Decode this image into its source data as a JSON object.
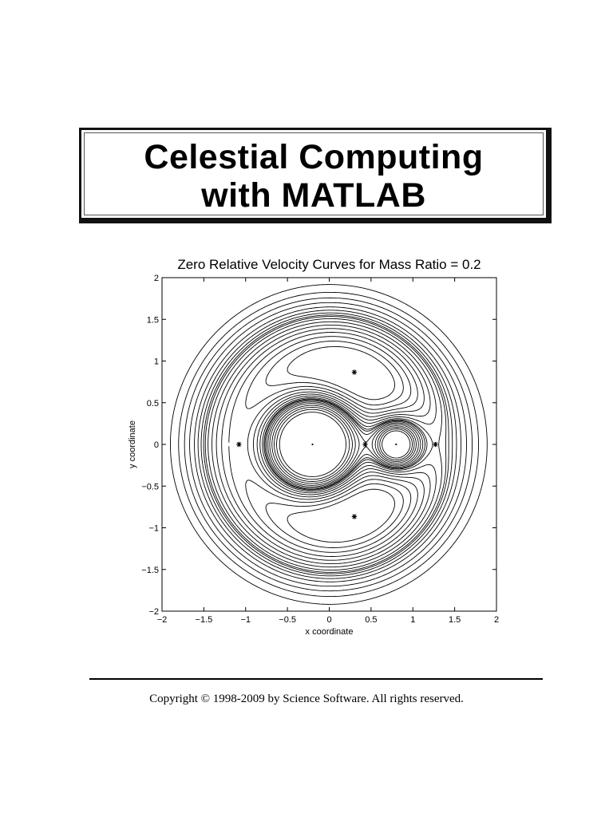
{
  "document": {
    "title_line1": "Celestial Computing",
    "title_line2": "with MATLAB",
    "copyright": "Copyright © 1998-2009 by Science Software. All rights reserved."
  },
  "chart_data": {
    "type": "contour",
    "title": "Zero Relative Velocity Curves for Mass Ratio = 0.2",
    "xlabel": "x coordinate",
    "ylabel": "y coordinate",
    "xlim": [
      -2,
      2
    ],
    "ylim": [
      -2,
      2
    ],
    "mass_ratio": 0.2,
    "xticks": [
      -2,
      -1.5,
      -1,
      -0.5,
      0,
      0.5,
      1,
      1.5,
      2
    ],
    "yticks": [
      -2,
      -1.5,
      -1,
      -0.5,
      0,
      0.5,
      1,
      1.5,
      2
    ],
    "xtick_labels": [
      "−2",
      "−1.5",
      "−1",
      "−0.5",
      "0",
      "0.5",
      "1",
      "1.5",
      "2"
    ],
    "ytick_labels": [
      "−2",
      "−1.5",
      "−1",
      "−0.5",
      "0",
      "0.5",
      "1",
      "1.5",
      "2"
    ],
    "primaries": [
      {
        "x": -0.2,
        "y": 0
      },
      {
        "x": 0.8,
        "y": 0
      }
    ],
    "lagrange_points": [
      {
        "x": -1.08,
        "y": 0
      },
      {
        "x": 0.43,
        "y": 0
      },
      {
        "x": 1.27,
        "y": 0
      },
      {
        "x": 0.3,
        "y": 0.866
      },
      {
        "x": 0.3,
        "y": -0.866
      }
    ],
    "contour_levels": [
      1.5,
      1.54,
      1.58,
      1.62,
      1.66,
      1.7,
      1.74,
      1.78,
      1.81,
      1.83,
      1.86,
      1.9,
      1.95,
      2.02,
      2.1,
      2.2,
      2.35
    ]
  }
}
